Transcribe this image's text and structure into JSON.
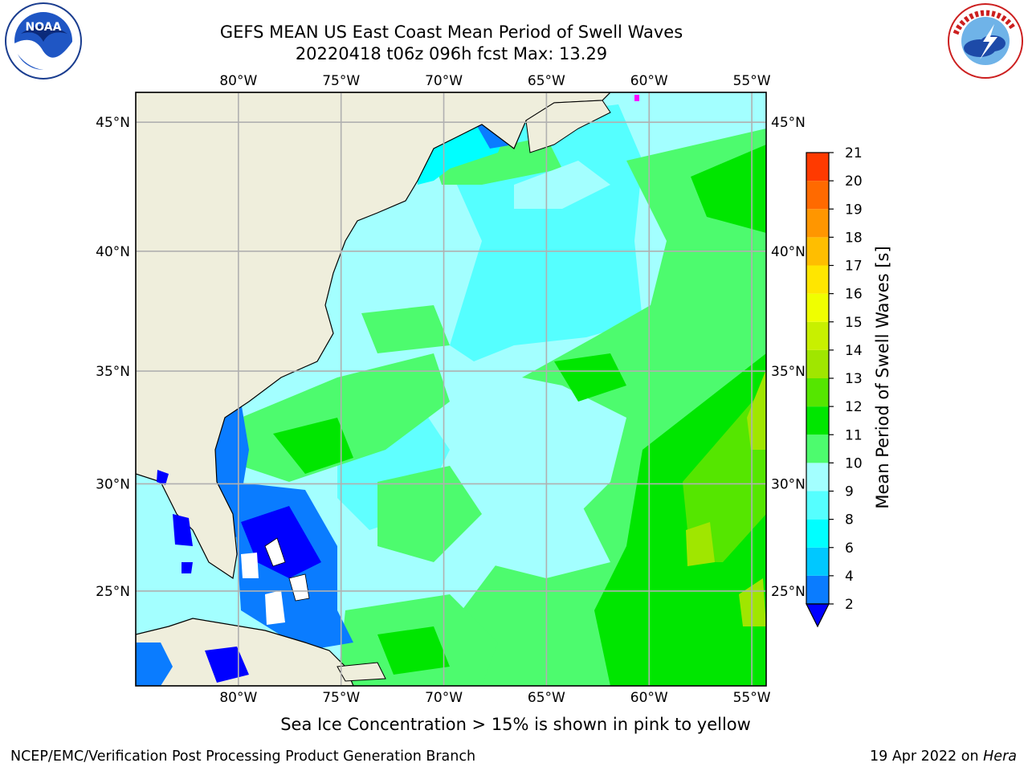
{
  "title": {
    "line1": "GEFS MEAN US East Coast Mean Period of Swell Waves",
    "line2": "20220418 t06z 096h fcst   Max: 13.29"
  },
  "logos": {
    "left": {
      "name": "NOAA",
      "icon": "noaa-logo"
    },
    "right": {
      "name": "National Weather Service",
      "icon": "nws-logo"
    }
  },
  "map": {
    "lon_labels": [
      "80°W",
      "75°W",
      "70°W",
      "65°W",
      "60°W",
      "55°W"
    ],
    "lat_labels": [
      "45°N",
      "40°N",
      "35°N",
      "30°N",
      "25°N"
    ],
    "lon_values": [
      -80,
      -75,
      -70,
      -65,
      -60,
      -55
    ],
    "lat_values": [
      45,
      40,
      35,
      30,
      25
    ],
    "extent": {
      "lon_min": -85,
      "lon_max": -54.3,
      "lat_min": 20.4,
      "lat_max": 46.1
    },
    "land_color": "#efeedc",
    "grid_color": "#b0b0b0"
  },
  "colorbar": {
    "label": "Mean Period of Swell Waves [s]",
    "ticks": [
      "2",
      "4",
      "6",
      "8",
      "9",
      "10",
      "11",
      "12",
      "13",
      "14",
      "15",
      "16",
      "17",
      "18",
      "19",
      "20",
      "21"
    ],
    "colors": [
      "#0a7cff",
      "#00c8ff",
      "#00ffff",
      "#55ffff",
      "#a3ffff",
      "#4dfb6e",
      "#00e600",
      "#55e600",
      "#a0e600",
      "#c8f000",
      "#f0ff00",
      "#ffe600",
      "#ffbe00",
      "#ff9600",
      "#ff6a00",
      "#ff3a00",
      "#ff0000"
    ],
    "under_color": "#0000ff"
  },
  "note": "Sea Ice Concentration > 15% is shown in pink to yellow",
  "footer": {
    "left": "NCEP/EMC/Verification Post Processing Product Generation Branch",
    "date": "19 Apr 2022 on",
    "host": "Hera"
  }
}
